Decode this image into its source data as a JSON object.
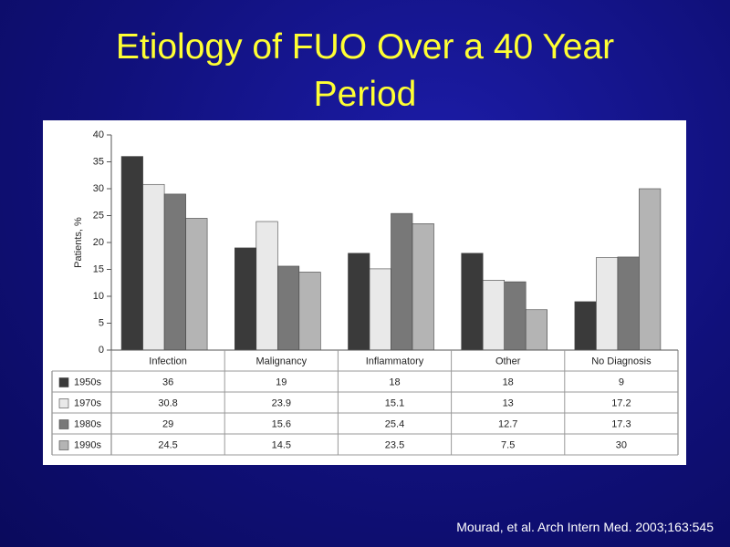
{
  "title": "Etiology of FUO Over a 40 Year Period",
  "citation": "Mourad, et al. Arch Intern Med. 2003;163:545",
  "chart_data": {
    "type": "bar",
    "y_label": "Patients, %",
    "categories": [
      "Infection",
      "Malignancy",
      "Inflammatory",
      "Other",
      "No Diagnosis"
    ],
    "series": [
      {
        "name": "1950s",
        "color": "#3a3a3a",
        "values": [
          36,
          19,
          18,
          18,
          9
        ]
      },
      {
        "name": "1970s",
        "color": "#e9e9e9",
        "values": [
          30.8,
          23.9,
          15.1,
          13,
          17.2
        ]
      },
      {
        "name": "1980s",
        "color": "#787878",
        "values": [
          29,
          15.6,
          25.4,
          12.7,
          17.3
        ]
      },
      {
        "name": "1990s",
        "color": "#b4b4b4",
        "values": [
          24.5,
          14.5,
          23.5,
          7.5,
          30
        ]
      }
    ],
    "ylim": [
      0,
      40
    ],
    "yticks": [
      0,
      5,
      10,
      15,
      20,
      25,
      30,
      35,
      40
    ],
    "grid": false
  }
}
